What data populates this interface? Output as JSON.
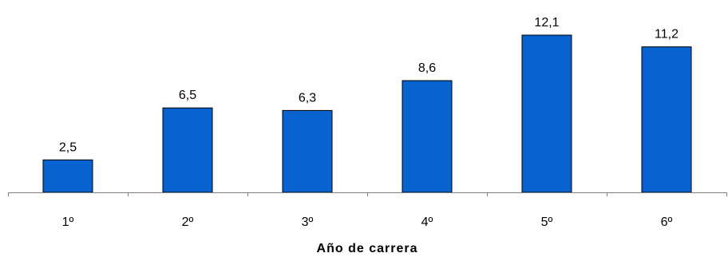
{
  "chart_data": {
    "type": "bar",
    "title": "",
    "xlabel": "Año de carrera",
    "ylabel": "",
    "categories": [
      "1º",
      "2º",
      "3º",
      "4º",
      "5º",
      "6º"
    ],
    "values": [
      2.5,
      6.5,
      6.3,
      8.6,
      12.1,
      11.2
    ],
    "value_labels": [
      "2,5",
      "6,5",
      "6,3",
      "8,6",
      "12,1",
      "11,2"
    ],
    "ylim": [
      0,
      12.1
    ],
    "grid": false,
    "legend": "none",
    "bar_color": "#0863d0"
  }
}
